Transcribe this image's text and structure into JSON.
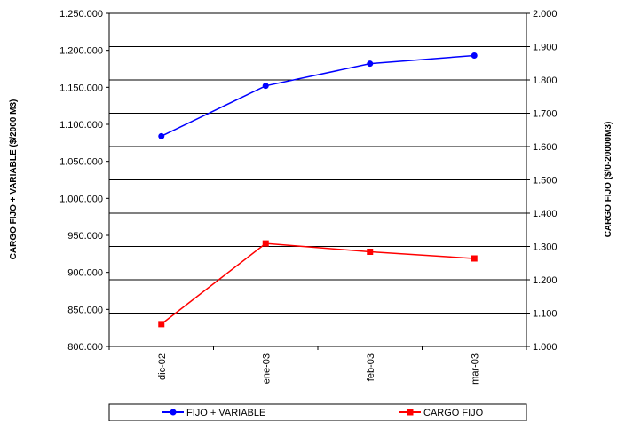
{
  "chart_data": {
    "type": "line",
    "categories": [
      "dic-02",
      "ene-03",
      "feb-03",
      "mar-03"
    ],
    "series": [
      {
        "name": "FIJO + VARIABLE",
        "axis": "left",
        "color": "#0000ff",
        "marker": "circle",
        "values": [
          1084000,
          1152000,
          1182000,
          1193000
        ]
      },
      {
        "name": "CARGO FIJO",
        "axis": "right",
        "color": "#ff0000",
        "marker": "square",
        "values": [
          1067,
          1309,
          1284,
          1264
        ]
      }
    ],
    "ylabel_left": "CARGO FIJO + VARIABLE ($/2000 M3)",
    "ylabel_right": "CARGO FIJO ($/0-20000M3)",
    "ylim_left": [
      800000,
      1250000
    ],
    "ylim_right": [
      1000,
      2000
    ],
    "yticks_left": [
      "800.000",
      "850.000",
      "900.000",
      "950.000",
      "1.000.000",
      "1.050.000",
      "1.100.000",
      "1.150.000",
      "1.200.000",
      "1.250.000"
    ],
    "yticks_right": [
      "1.000",
      "1.100",
      "1.200",
      "1.300",
      "1.400",
      "1.500",
      "1.600",
      "1.700",
      "1.800",
      "1.900",
      "2.000"
    ],
    "grid": "horizontal",
    "legend": "bottom"
  }
}
